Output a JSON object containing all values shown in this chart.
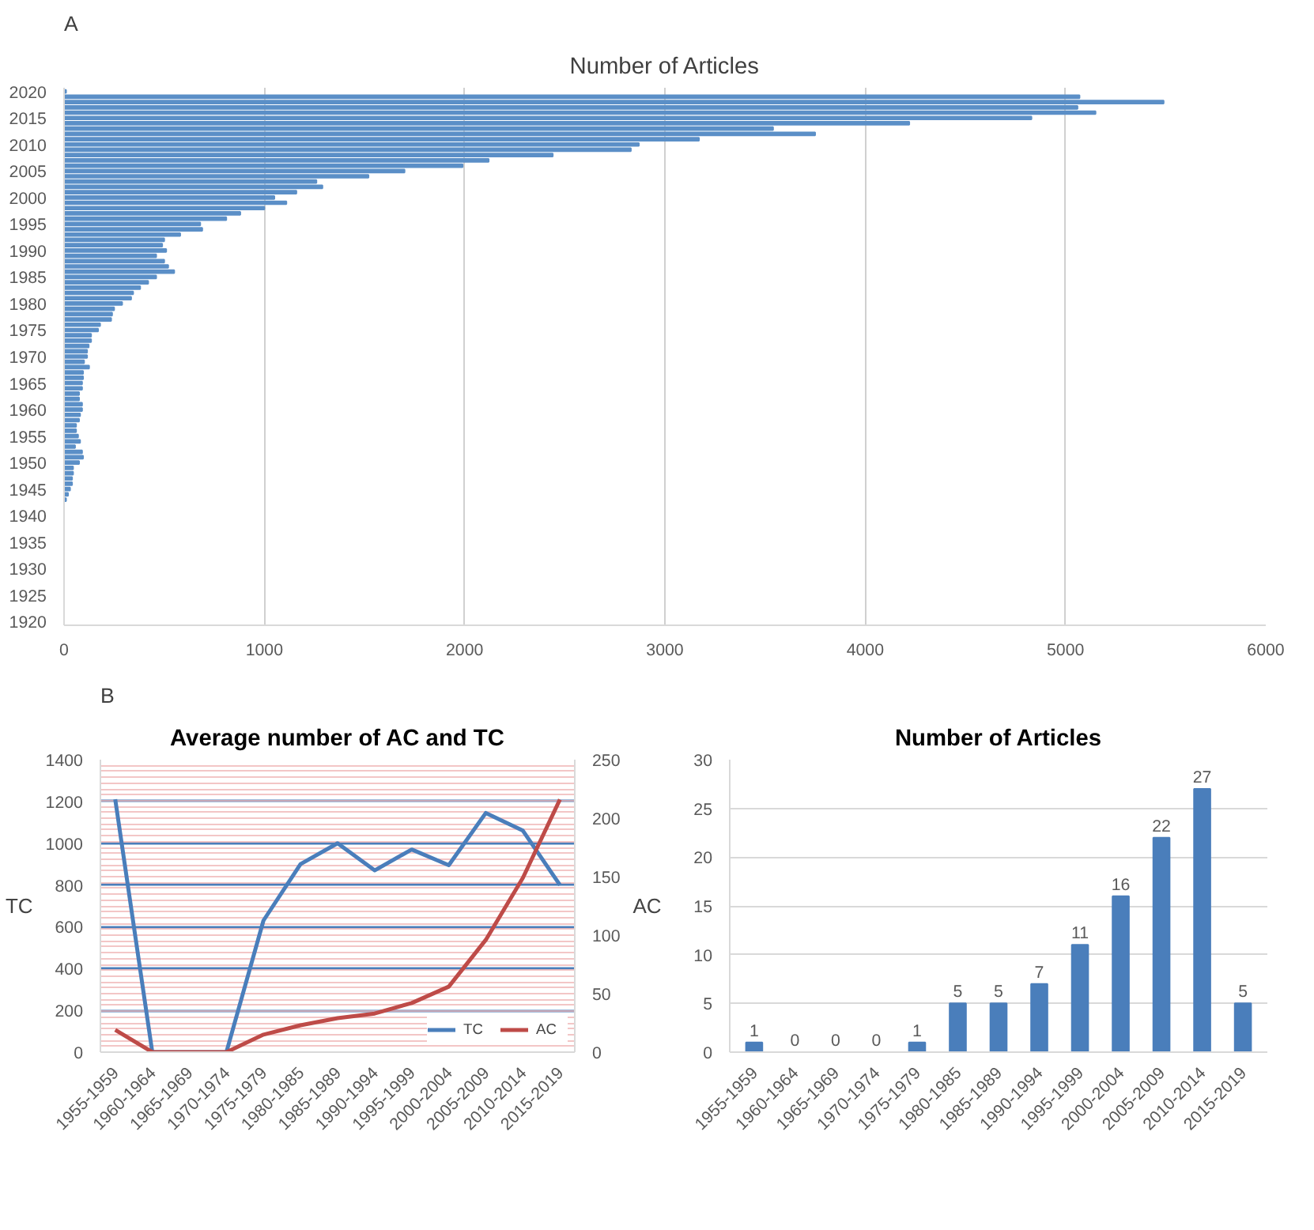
{
  "chart_data": [
    {
      "type": "bar",
      "orientation": "horizontal",
      "title": "Number of Articles",
      "annotations": [
        "A"
      ],
      "color": "#5b8fc7",
      "categories": [
        "2020",
        null,
        null,
        null,
        null,
        "2015",
        null,
        null,
        null,
        null,
        "2010",
        null,
        null,
        null,
        null,
        "2005",
        null,
        null,
        null,
        null,
        "2000",
        null,
        null,
        null,
        null,
        "1995",
        null,
        null,
        null,
        null,
        "1990",
        null,
        null,
        null,
        null,
        "1985",
        null,
        null,
        null,
        null,
        "1980",
        null,
        null,
        null,
        null,
        "1975",
        null,
        null,
        null,
        null,
        "1970",
        null,
        null,
        null,
        null,
        "1965",
        null,
        null,
        null,
        null,
        "1960",
        null,
        null,
        null,
        null,
        "1955",
        null,
        null,
        null,
        null,
        "1950",
        null,
        null,
        null,
        null,
        "1945",
        null,
        null,
        null,
        null,
        "1940",
        null,
        null,
        null,
        null,
        "1935",
        null,
        null,
        null,
        null,
        "1930",
        null,
        null,
        null,
        null,
        "1925",
        null,
        null,
        null,
        null,
        "1920"
      ],
      "values": [
        10,
        5070,
        5490,
        5060,
        5150,
        4830,
        4220,
        3540,
        3750,
        3170,
        2870,
        2830,
        2440,
        2120,
        1990,
        1700,
        1520,
        1260,
        1290,
        1160,
        1050,
        1110,
        1000,
        880,
        810,
        680,
        690,
        580,
        500,
        490,
        510,
        460,
        500,
        520,
        550,
        460,
        420,
        380,
        345,
        335,
        290,
        250,
        240,
        235,
        180,
        170,
        135,
        135,
        123,
        115,
        115,
        100,
        125,
        95,
        95,
        90,
        90,
        75,
        75,
        90,
        90,
        80,
        75,
        60,
        60,
        70,
        80,
        55,
        90,
        95,
        75,
        45,
        45,
        40,
        40,
        30,
        20,
        10,
        0,
        0,
        0,
        0,
        0,
        0,
        0,
        0,
        0,
        0,
        0,
        0,
        0,
        0,
        0,
        0,
        0,
        0,
        0,
        0,
        0,
        0,
        0
      ],
      "xlim": [
        0,
        6000
      ],
      "xticks": [
        0,
        1000,
        2000,
        3000,
        4000,
        5000,
        6000
      ],
      "grid": "x"
    },
    {
      "type": "line",
      "title": "Average number of AC and TC",
      "annotations": [
        "B"
      ],
      "ylabel": "TC",
      "y2label": "AC",
      "categories": [
        "1955-1959",
        "1960-1964",
        "1965-1969",
        "1970-1974",
        "1975-1979",
        "1980-1985",
        "1985-1989",
        "1990-1994",
        "1995-1999",
        "2000-2004",
        "2005-2009",
        "2010-2014",
        "2015-2019"
      ],
      "series": [
        {
          "name": "TC",
          "color": "#4a7ebb",
          "values": [
            1210,
            0,
            0,
            0,
            630,
            900,
            1000,
            870,
            970,
            895,
            1145,
            1060,
            800
          ]
        },
        {
          "name": "AC",
          "color": "#be4b48",
          "axis": "y2",
          "values": [
            19,
            0,
            0,
            0,
            15,
            23,
            29,
            33,
            42,
            56,
            96,
            149,
            216
          ]
        }
      ],
      "ylim": [
        0,
        1400
      ],
      "yticks": [
        0,
        200,
        400,
        600,
        800,
        1000,
        1200,
        1400
      ],
      "y2lim": [
        0,
        250
      ],
      "y2ticks": [
        0,
        {
          "value": 5,
          "label": null
        },
        {
          "value": 10,
          "label": null
        },
        {
          "value": 15,
          "label": null
        },
        {
          "value": 20,
          "label": null
        },
        {
          "value": 25,
          "label": null
        },
        {
          "value": 30,
          "label": null
        },
        {
          "value": 35,
          "label": null
        },
        {
          "value": 40,
          "label": null
        },
        {
          "value": 45,
          "label": null
        },
        50,
        {
          "value": 55,
          "label": null
        },
        {
          "value": 60,
          "label": null
        },
        {
          "value": 65,
          "label": null
        },
        {
          "value": 70,
          "label": null
        },
        {
          "value": 75,
          "label": null
        },
        {
          "value": 80,
          "label": null
        },
        {
          "value": 85,
          "label": null
        },
        {
          "value": 90,
          "label": null
        },
        {
          "value": 95,
          "label": null
        },
        100,
        {
          "value": 105,
          "label": null
        },
        {
          "value": 110,
          "label": null
        },
        {
          "value": 115,
          "label": null
        },
        {
          "value": 120,
          "label": null
        },
        {
          "value": 125,
          "label": null
        },
        {
          "value": 130,
          "label": null
        },
        {
          "value": 135,
          "label": null
        },
        {
          "value": 140,
          "label": null
        },
        {
          "value": 145,
          "label": null
        },
        150,
        {
          "value": 155,
          "label": null
        },
        {
          "value": 160,
          "label": null
        },
        {
          "value": 165,
          "label": null
        },
        {
          "value": 170,
          "label": null
        },
        {
          "value": 175,
          "label": null
        },
        {
          "value": 180,
          "label": null
        },
        {
          "value": 185,
          "label": null
        },
        {
          "value": 190,
          "label": null
        },
        {
          "value": 195,
          "label": null
        },
        200,
        {
          "value": 205,
          "label": null
        },
        {
          "value": 210,
          "label": null
        },
        {
          "value": 215,
          "label": null
        },
        {
          "value": 220,
          "label": null
        },
        {
          "value": 225,
          "label": null
        },
        {
          "value": 230,
          "label": null
        },
        {
          "value": 235,
          "label": null
        },
        {
          "value": 240,
          "label": null
        },
        {
          "value": 245,
          "label": null
        },
        250
      ],
      "grid": true,
      "legend": "bottom right"
    },
    {
      "type": "bar",
      "title": "Number of Articles",
      "color": "#4a7ebb",
      "data_labels": true,
      "categories": [
        "1955-1959",
        "1960-1964",
        "1965-1969",
        "1970-1974",
        "1975-1979",
        "1980-1985",
        "1985-1989",
        "1990-1994",
        "1995-1999",
        "2000-2004",
        "2005-2009",
        "2010-2014",
        "2015-2019"
      ],
      "values": [
        1,
        0,
        0,
        0,
        1,
        5,
        5,
        7,
        11,
        16,
        22,
        27,
        5
      ],
      "ylim": [
        0,
        30
      ],
      "yticks": [
        0,
        5,
        10,
        15,
        20,
        25,
        30
      ],
      "grid": "y"
    }
  ]
}
